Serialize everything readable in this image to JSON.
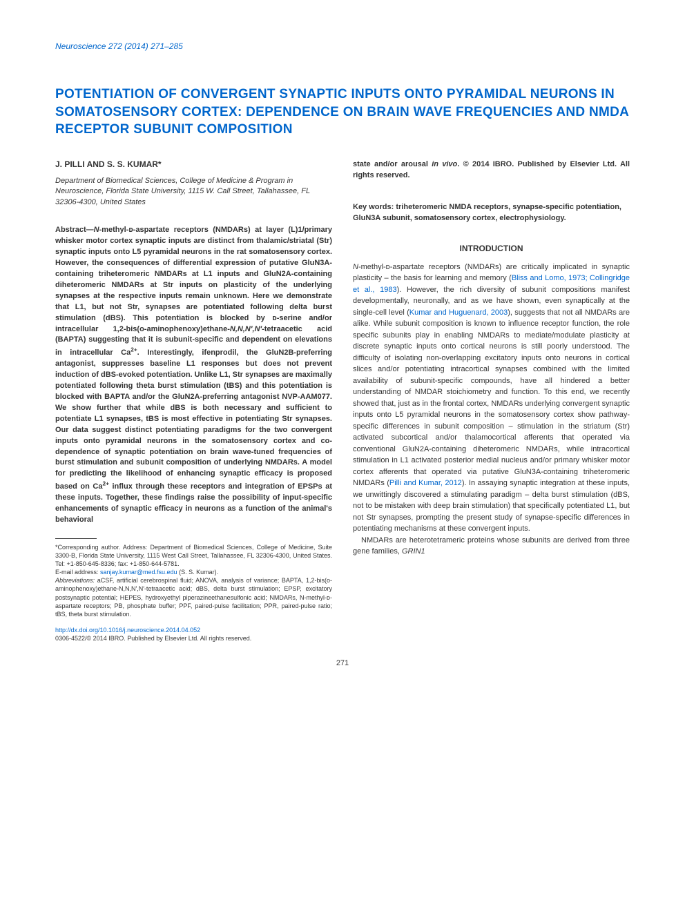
{
  "journal": {
    "name": "Neuroscience",
    "citation": "272 (2014) 271–285"
  },
  "title": "POTENTIATION OF CONVERGENT SYNAPTIC INPUTS ONTO PYRAMIDAL NEURONS IN SOMATOSENSORY CORTEX: DEPENDENCE ON BRAIN WAVE FREQUENCIES AND NMDA RECEPTOR SUBUNIT COMPOSITION",
  "authors": "J. PILLI AND S. S. KUMAR*",
  "affiliation": "Department of Biomedical Sciences, College of Medicine & Program in Neuroscience, Florida State University, 1115 W. Call Street, Tallahassee, FL 32306-4300, United States",
  "abstract": {
    "label": "Abstract—",
    "body_html": "<span class='italic'>N</span>-methyl-ᴅ-aspartate receptors (NMDARs) at layer (L)1/primary whisker motor cortex synaptic inputs are distinct from thalamic/striatal (Str) synaptic inputs onto L5 pyramidal neurons in the rat somatosensory cortex. However, the consequences of differential expression of putative GluN3A-containing triheteromeric NMDARs at L1 inputs and GluN2A-containing diheteromeric NMDARs at Str inputs on plasticity of the underlying synapses at the respective inputs remain unknown. Here we demonstrate that L1, but not Str, synapses are potentiated following delta burst stimulation (dBS). This potentiation is blocked by ᴅ-serine and/or intracellular 1,2-bis(o-aminophenoxy)ethane-<span class='italic'>N,N,N′,N′</span>-tetraacetic acid (BAPTA) suggesting that it is subunit-specific and dependent on elevations in intracellular Ca<sup>2+</sup>. Interestingly, ifenprodil, the GluN2B-preferring antagonist, suppresses baseline L1 responses but does not prevent induction of dBS-evoked potentiation. Unlike L1, Str synapses are maximally potentiated following theta burst stimulation (tBS) and this potentiation is blocked with BAPTA and/or the GluN2A-preferring antagonist NVP-AAM077. We show further that while dBS is both necessary and sufficient to potentiate L1 synapses, tBS is most effective in potentiating Str synapses. Our data suggest distinct potentiating paradigms for the two convergent inputs onto pyramidal neurons in the somatosensory cortex and co-dependence of synaptic potentiation on brain wave-tuned frequencies of burst stimulation and subunit composition of underlying NMDARs. A model for predicting the likelihood of enhancing synaptic efficacy is proposed based on Ca<sup>2+</sup> influx through these receptors and integration of EPSPs at these inputs. Together, these findings raise the possibility of input-specific enhancements of synaptic efficacy in neurons as a function of the animal's behavioral",
    "tail_html": "state and/or arousal <span class='italic'>in vivo</span>. © 2014 IBRO. Published by Elsevier Ltd. All rights reserved."
  },
  "keywords": {
    "label": "Key words:",
    "text": "triheteromeric NMDA receptors, synapse-specific potentiation, GluN3A subunit, somatosensory cortex, electrophysiology."
  },
  "introduction": {
    "heading": "INTRODUCTION",
    "para1_pre": "N",
    "para1_html": "-methyl-ᴅ-aspartate receptors (NMDARs) are critically implicated in synaptic plasticity – the basis for learning and memory (<span class='ref-link'>Bliss and Lomo, 1973; Collingridge et al., 1983</span>). However, the rich diversity of subunit compositions manifest developmentally, neuronally, and as we have shown, even synaptically at the single-cell level (<span class='ref-link'>Kumar and Huguenard, 2003</span>), suggests that not all NMDARs are alike. While subunit composition is known to influence receptor function, the role specific subunits play in enabling NMDARs to mediate/modulate plasticity at discrete synaptic inputs onto cortical neurons is still poorly understood. The difficulty of isolating non-overlapping excitatory inputs onto neurons in cortical slices and/or potentiating intracortical synapses combined with the limited availability of subunit-specific compounds, have all hindered a better understanding of NMDAR stoichiometry and function. To this end, we recently showed that, just as in the frontal cortex, NMDARs underlying convergent synaptic inputs onto L5 pyramidal neurons in the somatosensory cortex show pathway-specific differences in subunit composition – stimulation in the striatum (Str) activated subcortical and/or thalamocortical afferents that operated via conventional GluN2A-containing diheteromeric NMDARs, while intracortical stimulation in L1 activated posterior medial nucleus and/or primary whisker motor cortex afferents that operated via putative GluN3A-containing triheteromeric NMDARs (<span class='ref-link'>Pilli and Kumar, 2012</span>). In assaying synaptic integration at these inputs, we unwittingly discovered a stimulating paradigm – delta burst stimulation (dBS, not to be mistaken with deep brain stimulation) that specifically potentiated L1, but not Str synapses, prompting the present study of synapse-specific differences in potentiating mechanisms at these convergent inputs.",
    "para2_html": "NMDARs are heterotetrameric proteins whose subunits are derived from three gene families, <span class='italic'>GRIN1</span>"
  },
  "footnotes": {
    "corresponding": "*Corresponding author. Address: Department of Biomedical Sciences, College of Medicine, Suite 3300-B, Florida State University, 1115 West Call Street, Tallahassee, FL 32306-4300, United States. Tel: +1-850-645-8336; fax: +1-850-644-5781.",
    "email_label": "E-mail address:",
    "email": "sanjay.kumar@med.fsu.edu",
    "email_attribution": "(S. S. Kumar).",
    "abbrev_label": "Abbreviations:",
    "abbrev": "aCSF, artificial cerebrospinal fluid; ANOVA, analysis of variance; BAPTA, 1,2-bis(o-aminophenoxy)ethane-N,N,N′,N′-tetraacetic acid; dBS, delta burst stimulation; EPSP, excitatory postsynaptic potential; HEPES, hydroxyethyl piperazineethanesulfonic acid; NMDARs, N-methyl-ᴅ-aspartate receptors; PB, phosphate buffer; PPF, paired-pulse facilitation; PPR, paired-pulse ratio; tBS, theta burst stimulation."
  },
  "doi": "http://dx.doi.org/10.1016/j.neuroscience.2014.04.052",
  "copyright": "0306-4522/© 2014 IBRO. Published by Elsevier Ltd. All rights reserved.",
  "page_number": "271",
  "colors": {
    "link": "#0066cc",
    "text": "#333333",
    "background": "#ffffff"
  }
}
